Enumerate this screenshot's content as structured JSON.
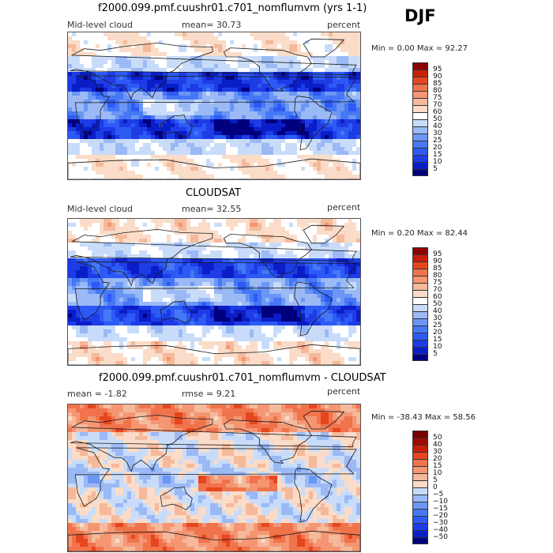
{
  "season": "DJF",
  "panels": [
    {
      "title": "f2000.099.pmf.cuushr01.c701_nomflumvm (yrs 1-1)",
      "left_label": "Mid-level cloud",
      "mid_label": "mean=  30.73",
      "right_label": "percent",
      "minmax": "Min =   0.00 Max =  92.27"
    },
    {
      "title": "CLOUDSAT",
      "left_label": "Mid-level cloud",
      "mid_label": "mean=  32.55",
      "right_label": "percent",
      "minmax": "Min =   0.20 Max =  82.44"
    },
    {
      "title": "f2000.099.pmf.cuushr01.c701_nomflumvm - CLOUDSAT",
      "left_label": "mean =  -1.82",
      "mid_label": "rmse =   9.21",
      "right_label": "percent",
      "minmax": "Min = -38.43 Max =  58.56"
    }
  ],
  "chart_data": [
    {
      "type": "heatmap",
      "title": "f2000.099.pmf.cuushr01.c701_nomflumvm (yrs 1-1)",
      "variable": "Mid-level cloud",
      "units": "percent",
      "mean": 30.73,
      "min": 0.0,
      "max": 92.27,
      "colorbar_levels": [
        5,
        10,
        15,
        20,
        25,
        30,
        40,
        50,
        60,
        70,
        75,
        80,
        85,
        90,
        95
      ],
      "colorbar_colors": [
        "#00007f",
        "#0a1ec8",
        "#1e3ce6",
        "#2d5af5",
        "#4678f5",
        "#6b96f5",
        "#9bb9f5",
        "#c8dcfa",
        "#ffffff",
        "#fadcc8",
        "#f5b99b",
        "#f59673",
        "#f0734b",
        "#e6461e",
        "#c81e0a",
        "#8c0000"
      ]
    },
    {
      "type": "heatmap",
      "title": "CLOUDSAT",
      "variable": "Mid-level cloud",
      "units": "percent",
      "mean": 32.55,
      "min": 0.2,
      "max": 82.44,
      "colorbar_levels": [
        5,
        10,
        15,
        20,
        25,
        30,
        40,
        50,
        60,
        70,
        75,
        80,
        85,
        90,
        95
      ],
      "colorbar_colors": [
        "#00007f",
        "#0a1ec8",
        "#1e3ce6",
        "#2d5af5",
        "#4678f5",
        "#6b96f5",
        "#9bb9f5",
        "#c8dcfa",
        "#ffffff",
        "#fadcc8",
        "#f5b99b",
        "#f59673",
        "#f0734b",
        "#e6461e",
        "#c81e0a",
        "#8c0000"
      ]
    },
    {
      "type": "heatmap",
      "title": "f2000.099.pmf.cuushr01.c701_nomflumvm - CLOUDSAT",
      "units": "percent",
      "mean": -1.82,
      "rmse": 9.21,
      "min": -38.43,
      "max": 58.56,
      "colorbar_levels": [
        -50,
        -40,
        -30,
        -20,
        -15,
        -10,
        -5,
        0,
        5,
        10,
        15,
        20,
        30,
        40,
        50
      ],
      "colorbar_colors": [
        "#00007f",
        "#0a1ec8",
        "#1e3ce6",
        "#2d5af5",
        "#4678f5",
        "#6b96f5",
        "#9bb9f5",
        "#c8dcfa",
        "#fadcc8",
        "#f5b99b",
        "#f59673",
        "#f0734b",
        "#e6461e",
        "#c81e0a",
        "#a00a00",
        "#7a0000"
      ]
    }
  ]
}
